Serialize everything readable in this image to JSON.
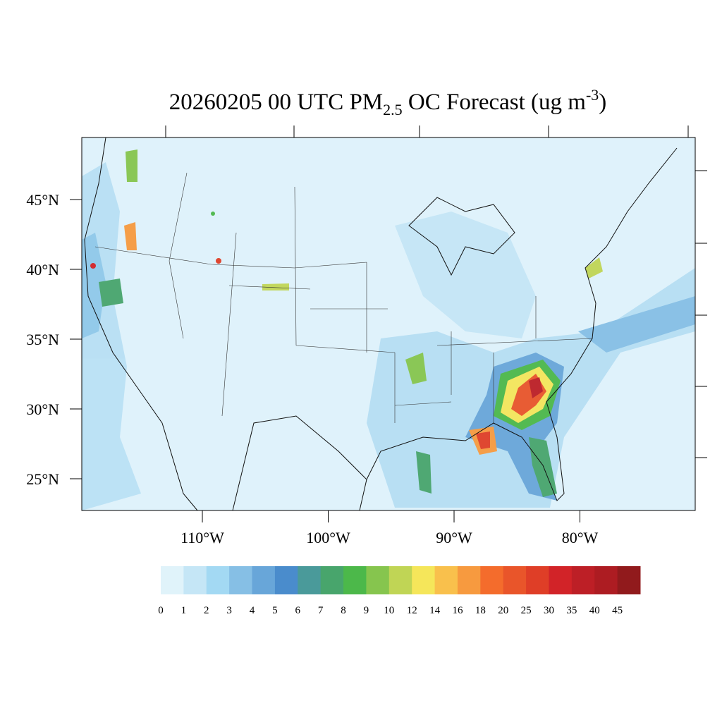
{
  "map": {
    "title": {
      "main": "20260205 00 UTC PM",
      "subscript": "2.5",
      "rest": " OC Forecast (ug m",
      "superscript": "-3",
      "end": ")"
    },
    "lat_labels": [
      {
        "value": 45,
        "label": "45°N"
      },
      {
        "value": 40,
        "label": "40°N"
      },
      {
        "value": 35,
        "label": "35°N"
      },
      {
        "value": 30,
        "label": "30°N"
      },
      {
        "value": 25,
        "label": "25°N"
      }
    ],
    "lon_labels": [
      {
        "value": -110,
        "label": "110°W"
      },
      {
        "value": -100,
        "label": "100°W"
      },
      {
        "value": -90,
        "label": "90°W"
      },
      {
        "value": -80,
        "label": "80°W"
      }
    ],
    "colorbar": {
      "levels": [
        0,
        1,
        2,
        3,
        4,
        5,
        6,
        7,
        8,
        9,
        10,
        12,
        14,
        16,
        18,
        20,
        25,
        30,
        35,
        40,
        45
      ],
      "colors": [
        "#e0f3fa",
        "#c5e6f6",
        "#a3d9f3",
        "#86bfe5",
        "#68a6d9",
        "#4a8ccc",
        "#4a9a9a",
        "#48a56c",
        "#4cb84a",
        "#86c54e",
        "#c0d555",
        "#f5e65a",
        "#f9c04c",
        "#f79a3f",
        "#f46c2c",
        "#e9552a",
        "#df3e27",
        "#d22328",
        "#bd1f26",
        "#ad1c22",
        "#911a1c"
      ]
    }
  }
}
